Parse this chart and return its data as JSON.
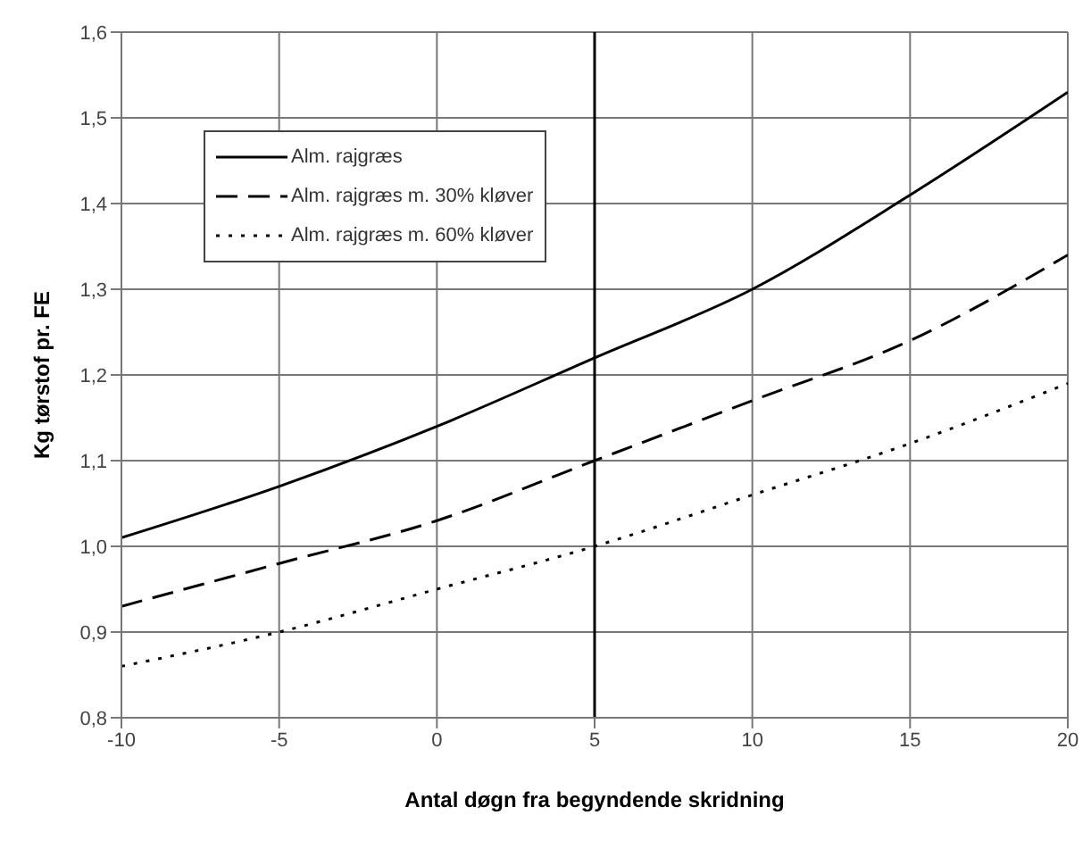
{
  "chart_data": {
    "type": "line",
    "xlabel": "Antal døgn fra begyndende skridning",
    "ylabel": "Kg tørstof pr. FE",
    "x": [
      -10,
      -5,
      0,
      5,
      10,
      15,
      20
    ],
    "series": [
      {
        "name": "Alm. rajgræs",
        "color": "#000000",
        "line_style": "solid",
        "values": [
          1.01,
          1.07,
          1.14,
          1.22,
          1.3,
          1.41,
          1.53
        ]
      },
      {
        "name": "Alm. rajgræs m. 30% kløver",
        "color": "#000000",
        "line_style": "dashed",
        "values": [
          0.93,
          0.98,
          1.03,
          1.1,
          1.17,
          1.24,
          1.34
        ]
      },
      {
        "name": "Alm. rajgræs m. 60% kløver",
        "color": "#000000",
        "line_style": "dotted",
        "values": [
          0.86,
          0.9,
          0.95,
          1.0,
          1.06,
          1.12,
          1.19
        ]
      }
    ],
    "xlim": [
      -10,
      20
    ],
    "xticks": [
      -10,
      -5,
      0,
      5,
      10,
      15,
      20
    ],
    "ylim": [
      0.8,
      1.6
    ],
    "yticks": [
      {
        "value": 0.8,
        "label": "0,8"
      },
      {
        "value": 0.9,
        "label": "0,9"
      },
      {
        "value": 1.0,
        "label": "1,0"
      },
      {
        "value": 1.1,
        "label": "1,1"
      },
      {
        "value": 1.2,
        "label": "1,2"
      },
      {
        "value": 1.3,
        "label": "1,3"
      },
      {
        "value": 1.4,
        "label": "1,4"
      },
      {
        "value": 1.5,
        "label": "1,5"
      },
      {
        "value": 1.6,
        "label": "1,6"
      }
    ],
    "ref_lines": [
      {
        "axis": "x",
        "value": 5,
        "color": "#000000"
      }
    ],
    "grid": true,
    "legend": "top left",
    "marker": "none"
  }
}
